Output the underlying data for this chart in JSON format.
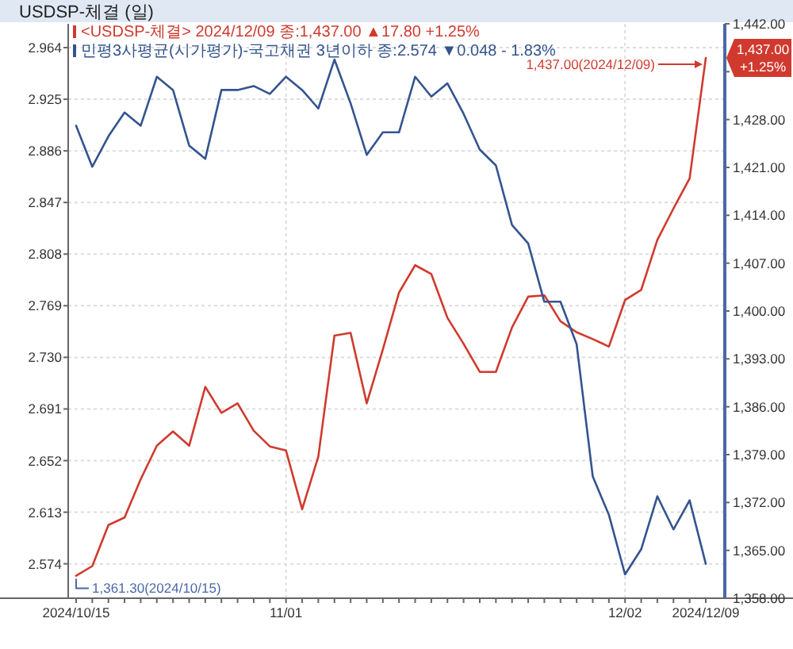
{
  "chart_data": {
    "type": "line",
    "title": "USDSP-체결 (일)",
    "categories": [
      "2024/10/15",
      null,
      null,
      null,
      null,
      null,
      null,
      null,
      null,
      null,
      null,
      null,
      null,
      "11/01",
      null,
      null,
      null,
      null,
      null,
      null,
      null,
      null,
      null,
      null,
      null,
      null,
      null,
      null,
      null,
      null,
      null,
      null,
      null,
      null,
      "12/02",
      null,
      null,
      null,
      null,
      "2024/12/09"
    ],
    "series": [
      {
        "name": "<USDSP-체결>",
        "color": "#d03a2e",
        "axis": "y2",
        "values": [
          1361.3,
          1362.7,
          1368.7,
          1369.8,
          1375.4,
          1380.3,
          1382.4,
          1380.3,
          1388.9,
          1385.1,
          1386.5,
          1382.5,
          1380.2,
          1379.6,
          1371.0,
          1378.7,
          1396.4,
          1396.8,
          1386.5,
          1394.4,
          1402.7,
          1406.7,
          1405.4,
          1399.0,
          1395.2,
          1391.1,
          1391.1,
          1397.6,
          1402.1,
          1402.3,
          1398.5,
          1396.9,
          1395.9,
          1394.8,
          1401.6,
          1403.1,
          1410.4,
          1415.0,
          1419.4,
          1437.0
        ]
      },
      {
        "name": "민평3사평균(시가평가)-국고채권 3년이하",
        "color": "#34548f",
        "values": [
          2.905,
          2.874,
          2.897,
          2.915,
          2.905,
          2.942,
          2.932,
          2.89,
          2.88,
          2.932,
          2.932,
          2.935,
          2.929,
          2.942,
          2.932,
          2.918,
          2.955,
          2.922,
          2.883,
          2.9,
          2.9,
          2.942,
          2.927,
          2.937,
          2.914,
          2.887,
          2.875,
          2.83,
          2.816,
          2.772,
          2.772,
          2.74,
          2.64,
          2.611,
          2.566,
          2.585,
          2.625,
          2.6,
          2.622,
          2.574
        ]
      }
    ],
    "ylim": [
      2.548,
      2.982
    ],
    "yticks": [
      {
        "value": 2.574,
        "label": "2.574"
      },
      {
        "value": 2.613,
        "label": "2.613"
      },
      {
        "value": 2.652,
        "label": "2.652"
      },
      {
        "value": 2.691,
        "label": "2.691"
      },
      {
        "value": 2.73,
        "label": "2.730"
      },
      {
        "value": 2.769,
        "label": "2.769"
      },
      {
        "value": 2.808,
        "label": "2.808"
      },
      {
        "value": 2.847,
        "label": "2.847"
      },
      {
        "value": 2.886,
        "label": "2.886"
      },
      {
        "value": 2.925,
        "label": "2.925"
      },
      {
        "value": 2.964,
        "label": "2.964"
      }
    ],
    "y2lim": [
      1358,
      1442
    ],
    "y2ticks": [
      {
        "value": 1358,
        "label": "1,358.00"
      },
      {
        "value": 1365,
        "label": "1,365.00"
      },
      {
        "value": 1372,
        "label": "1,372.00"
      },
      {
        "value": 1379,
        "label": "1,379.00"
      },
      {
        "value": 1386,
        "label": "1,386.00"
      },
      {
        "value": 1393,
        "label": "1,393.00"
      },
      {
        "value": 1400,
        "label": "1,400.00"
      },
      {
        "value": 1407,
        "label": "1,407.00"
      },
      {
        "value": 1414,
        "label": "1,414.00"
      },
      {
        "value": 1421,
        "label": "1,421.00"
      },
      {
        "value": 1428,
        "label": "1,428.00"
      },
      {
        "value": 1435,
        "label": null
      },
      {
        "value": 1442,
        "label": "1,442.00"
      }
    ],
    "grid": true,
    "legend": "top left",
    "annotations": [
      "2024/12/09 종:1,437.00 ▲17.80 +1.25%",
      "종:2.574 ▼0.048 - 1.83%",
      "1,361.30(2024/10/15)",
      "1,437.00(2024/12/09)",
      "1,437.00",
      "+1.25%"
    ]
  }
}
